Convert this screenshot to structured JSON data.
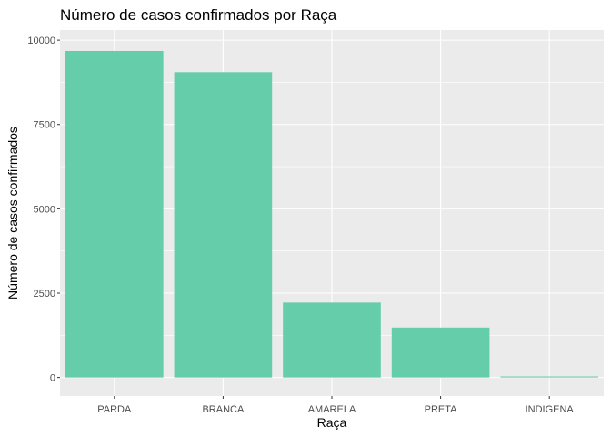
{
  "chart_data": {
    "type": "bar",
    "title": "Número de casos confirmados por Raça",
    "xlabel": "Raça",
    "ylabel": "Número de casos confirmados",
    "categories": [
      "PARDA",
      "BRANCA",
      "AMARELA",
      "PRETA",
      "INDIGENA"
    ],
    "values": [
      9680,
      9050,
      2220,
      1480,
      30
    ],
    "ylim": [
      -550,
      10300
    ],
    "yticks": [
      0,
      2500,
      5000,
      7500,
      10000
    ],
    "ytick_labels": [
      "0",
      "2500",
      "5000",
      "7500",
      "10000"
    ],
    "bar_color": "#66CDAA",
    "panel_color": "#EBEBEB",
    "grid": true,
    "legend": "none"
  }
}
